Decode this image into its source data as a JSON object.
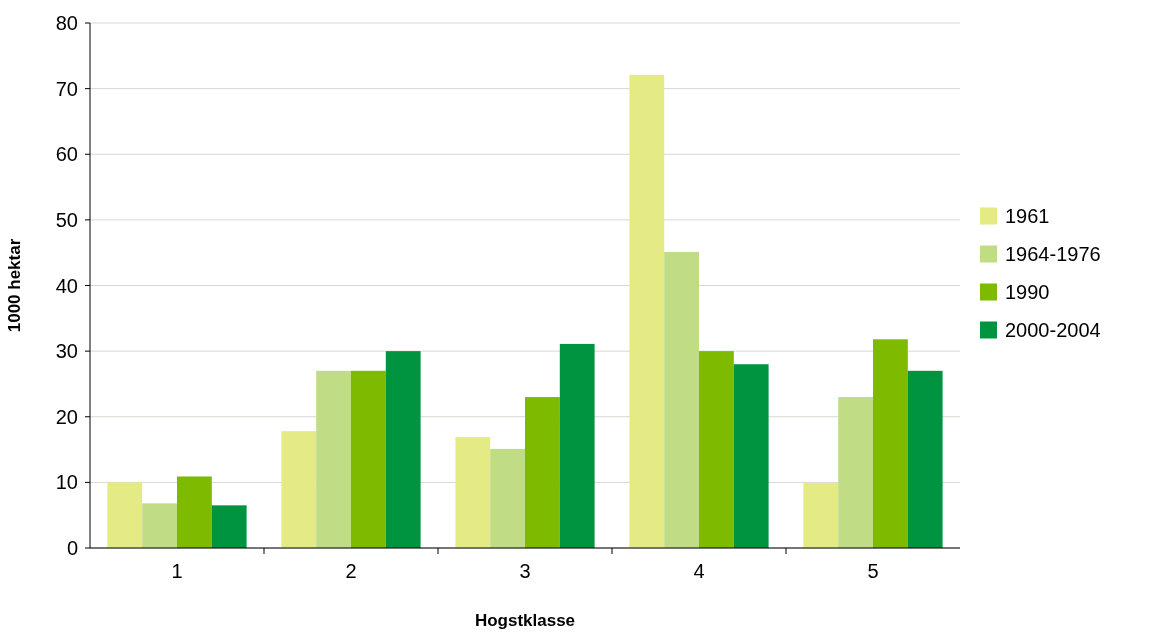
{
  "chart_data": {
    "type": "bar",
    "xlabel": "Hogstklasse",
    "ylabel": "1000 hektar",
    "categories": [
      "1",
      "2",
      "3",
      "4",
      "5"
    ],
    "series": [
      {
        "name": "1961",
        "color": "#e4eb84",
        "values": [
          10,
          17.8,
          16.9,
          72.1,
          9.9
        ]
      },
      {
        "name": "1964-1976",
        "color": "#c0dd86",
        "values": [
          6.8,
          27,
          15.1,
          45.1,
          23
        ]
      },
      {
        "name": "1990",
        "color": "#7dba00",
        "values": [
          10.9,
          27,
          23,
          30,
          31.8
        ]
      },
      {
        "name": "2000-2004",
        "color": "#009440",
        "values": [
          6.5,
          30,
          31.1,
          28,
          27
        ]
      }
    ],
    "ylim": [
      0,
      80
    ],
    "yticks": [
      0,
      10,
      20,
      30,
      40,
      50,
      60,
      70,
      80
    ],
    "grid": "y",
    "legend": "right"
  }
}
